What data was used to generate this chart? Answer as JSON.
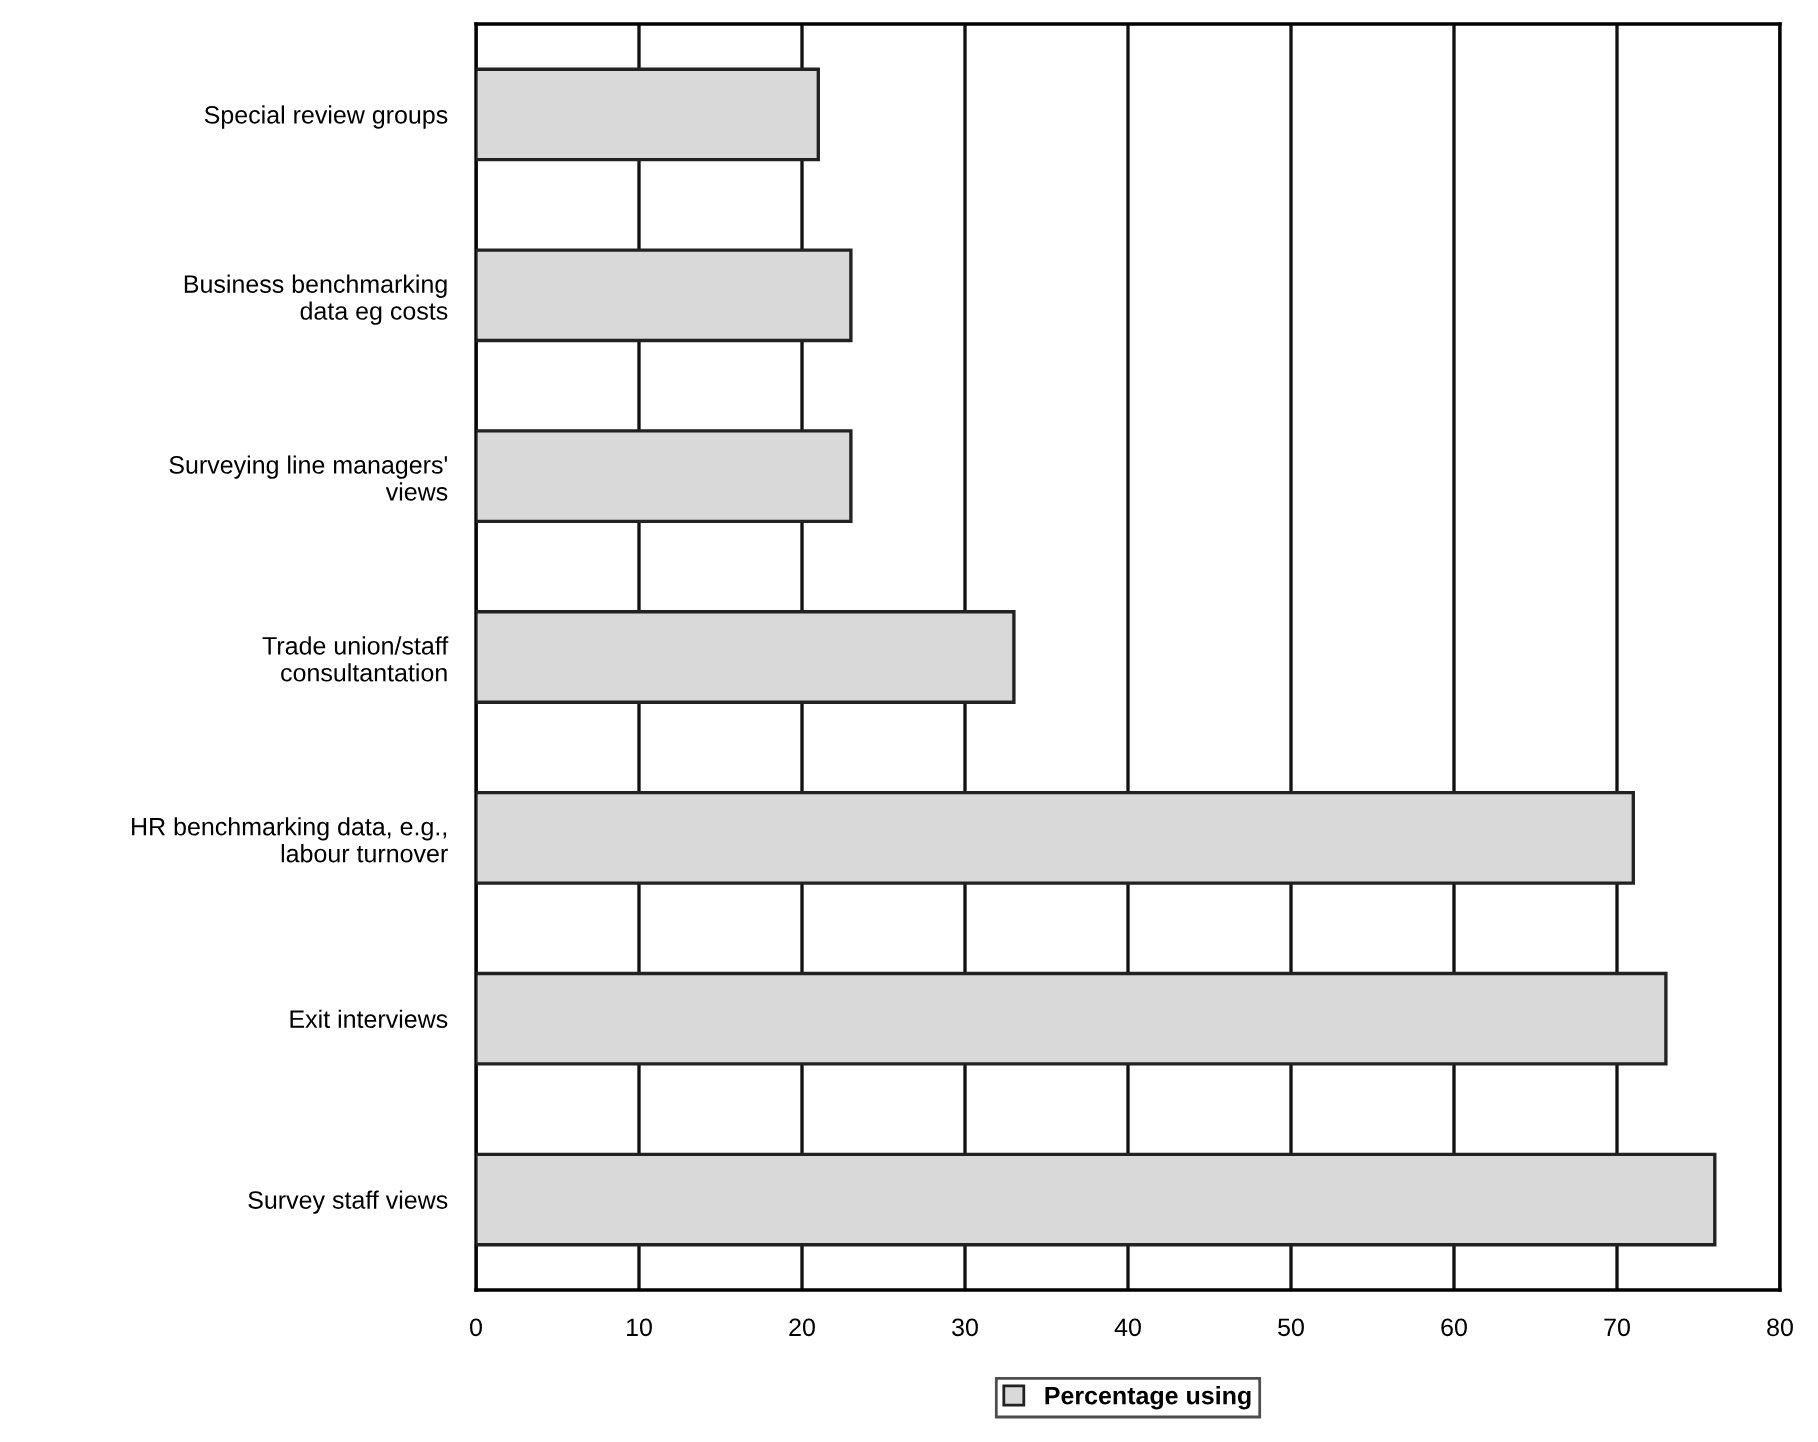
{
  "chart_data": {
    "type": "bar",
    "orientation": "horizontal",
    "categories": [
      "Special review groups",
      "Business benchmarking\ndata eg costs",
      "Surveying line managers'\nviews",
      "Trade union/staff\nconsultantation",
      "HR benchmarking data, e.g.,\nlabour turnover",
      "Exit interviews",
      "Survey staff views"
    ],
    "series": [
      {
        "name": "Percentage using",
        "color": "#d9d9d9",
        "values": [
          21,
          23,
          23,
          33,
          71,
          73,
          76
        ]
      }
    ],
    "xlim": [
      0,
      80
    ],
    "xticks": [
      0,
      10,
      20,
      30,
      40,
      50,
      60,
      70,
      80
    ],
    "grid": "x",
    "legend": "bottom"
  }
}
